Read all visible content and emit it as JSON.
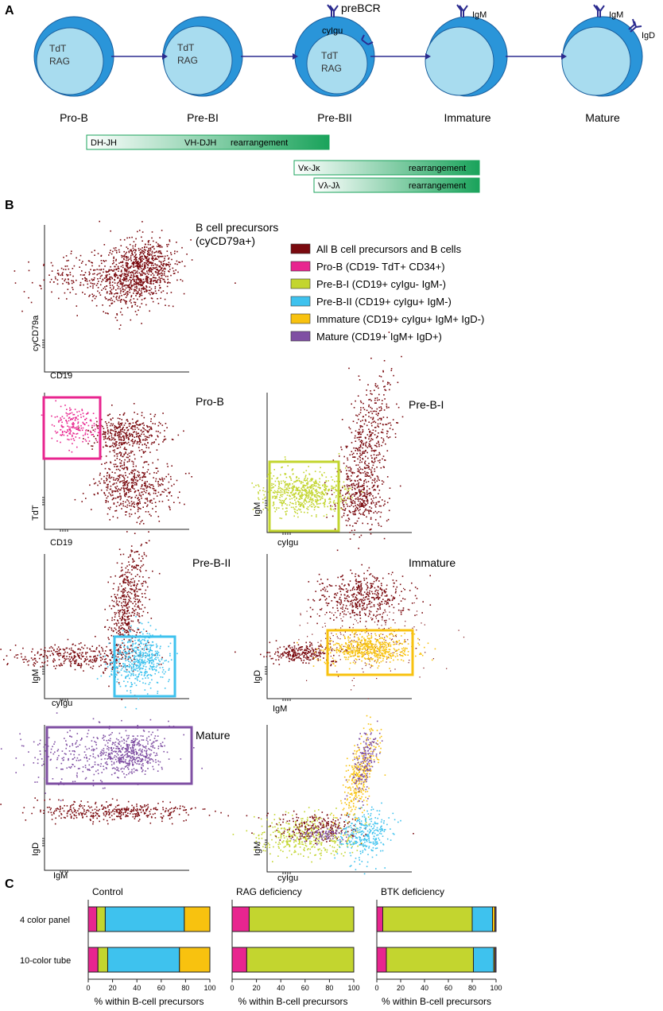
{
  "panels": {
    "a": "A",
    "b": "B",
    "c": "C"
  },
  "colors": {
    "all": "#7a0a0f",
    "prob": "#e8258f",
    "preb1": "#c3d52f",
    "preb2": "#3ec2ee",
    "immature": "#f8c20f",
    "mature": "#7f4fa3",
    "cell_outer": "#2a95d9",
    "cell_inner": "#a8dcef",
    "arrow": "#2b2b8f",
    "bar_green": "#1aa35b"
  },
  "panel_a": {
    "stages": [
      {
        "name": "Pro-B",
        "inner": [
          "TdT",
          "RAG"
        ]
      },
      {
        "name": "Pre-BI",
        "inner": [
          "TdT",
          "RAG"
        ]
      },
      {
        "name": "Pre-BII",
        "inner": [
          "TdT",
          "RAG"
        ],
        "cyto": "cyIgu",
        "receptor": "preBCR"
      },
      {
        "name": "Immature",
        "inner": [],
        "receptor": "IgM"
      },
      {
        "name": "Mature",
        "inner": [],
        "receptor": "IgM",
        "receptor2": "IgD"
      }
    ],
    "rearrangement_bars": [
      {
        "left_label": "DH-JH",
        "mid_label": "VH-DJH",
        "right_label": "rearrangement"
      },
      {
        "left_label": "Vκ-Jκ",
        "mid_label": "",
        "right_label": "rearrangement"
      },
      {
        "left_label": "Vλ-Jλ",
        "mid_label": "",
        "right_label": "rearrangement"
      }
    ]
  },
  "panel_b": {
    "plot_titles": {
      "precursors_line1": "B cell precursors",
      "precursors_line2": "(cyCD79a+)",
      "prob": "Pro-B",
      "preb1": "Pre-B-I",
      "preb2": "Pre-B-II",
      "immature": "Immature",
      "mature": "Mature"
    },
    "axes": {
      "cd19": "CD19",
      "cycd79a": "cyCD79a",
      "tdt": "TdT",
      "igm": "IgM",
      "cyigu": "cyIgu",
      "igd": "IgD"
    },
    "legend": [
      {
        "label": "All B cell precursors and B cells",
        "color": "#7a0a0f"
      },
      {
        "label": "Pro-B (CD19- TdT+ CD34+)",
        "color": "#e8258f"
      },
      {
        "label": "Pre-B-I (CD19+ cyIgu- IgM-)",
        "color": "#c3d52f"
      },
      {
        "label": "Pre-B-II (CD19+ cyIgu+ IgM-)",
        "color": "#3ec2ee"
      },
      {
        "label": "Immature (CD19+ cyIgu+ IgM+ IgD-)",
        "color": "#f8c20f"
      },
      {
        "label": "Mature (CD19+ IgM+ IgD+)",
        "color": "#7f4fa3"
      }
    ]
  },
  "chart_data": [
    {
      "type": "bar",
      "stacked": true,
      "orientation": "horizontal",
      "title": "Control",
      "categories": [
        "4 color panel",
        "10-color tube"
      ],
      "xlabel": "% within B-cell precursors",
      "xlim": [
        0,
        100
      ],
      "xticks": [
        0,
        20,
        40,
        60,
        80,
        100
      ],
      "series": [
        {
          "name": "Pro-B",
          "color": "#e8258f",
          "values": [
            7,
            8
          ]
        },
        {
          "name": "Pre-B-I",
          "color": "#c3d52f",
          "values": [
            7,
            8
          ]
        },
        {
          "name": "Pre-B-II",
          "color": "#3ec2ee",
          "values": [
            65,
            59
          ]
        },
        {
          "name": "Immature",
          "color": "#f8c20f",
          "values": [
            21,
            25
          ]
        },
        {
          "name": "Mature",
          "color": "#7f4fa3",
          "values": [
            0,
            0
          ]
        }
      ]
    },
    {
      "type": "bar",
      "stacked": true,
      "orientation": "horizontal",
      "title": "RAG deficiency",
      "categories": [
        "4 color panel",
        "10-color tube"
      ],
      "xlabel": "% within B-cell precursors",
      "xlim": [
        0,
        100
      ],
      "xticks": [
        0,
        20,
        40,
        60,
        80,
        100
      ],
      "series": [
        {
          "name": "Pro-B",
          "color": "#e8258f",
          "values": [
            14,
            12
          ]
        },
        {
          "name": "Pre-B-I",
          "color": "#c3d52f",
          "values": [
            86,
            88
          ]
        },
        {
          "name": "Pre-B-II",
          "color": "#3ec2ee",
          "values": [
            0,
            0
          ]
        },
        {
          "name": "Immature",
          "color": "#f8c20f",
          "values": [
            0,
            0
          ]
        },
        {
          "name": "Mature",
          "color": "#7f4fa3",
          "values": [
            0,
            0
          ]
        }
      ]
    },
    {
      "type": "bar",
      "stacked": true,
      "orientation": "horizontal",
      "title": "BTK deficiency",
      "categories": [
        "4 color panel",
        "10-color tube"
      ],
      "xlabel": "% within B-cell precursors",
      "xlim": [
        0,
        100
      ],
      "xticks": [
        0,
        20,
        40,
        60,
        80,
        100
      ],
      "series": [
        {
          "name": "Pro-B",
          "color": "#e8258f",
          "values": [
            5,
            8
          ]
        },
        {
          "name": "Pre-B-I",
          "color": "#c3d52f",
          "values": [
            75,
            73
          ]
        },
        {
          "name": "Pre-B-II",
          "color": "#3ec2ee",
          "values": [
            17,
            17
          ]
        },
        {
          "name": "Immature",
          "color": "#f8c20f",
          "values": [
            2,
            1
          ]
        },
        {
          "name": "Mature",
          "color": "#7f4fa3",
          "values": [
            1,
            1
          ]
        }
      ]
    }
  ]
}
